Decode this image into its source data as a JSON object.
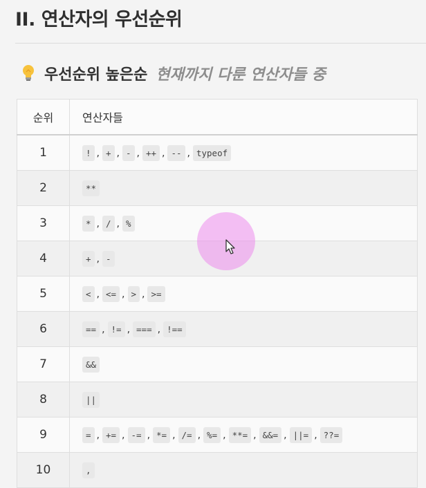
{
  "page": {
    "title": "II. 연산자의 우선순위"
  },
  "section": {
    "icon": "lightbulb-icon",
    "heading": "우선순위 높은순",
    "subheading": "현재까지 다룬 연산자들 중"
  },
  "table": {
    "headers": [
      "순위",
      "연산자들"
    ],
    "rows": [
      {
        "rank": "1",
        "ops": [
          "!",
          "+",
          "-",
          "++",
          "--",
          "typeof"
        ]
      },
      {
        "rank": "2",
        "ops": [
          "**"
        ]
      },
      {
        "rank": "3",
        "ops": [
          "*",
          "/",
          "%"
        ]
      },
      {
        "rank": "4",
        "ops": [
          "+",
          "-"
        ]
      },
      {
        "rank": "5",
        "ops": [
          "<",
          "<=",
          ">",
          ">="
        ]
      },
      {
        "rank": "6",
        "ops": [
          "==",
          "!=",
          "===",
          "!=="
        ]
      },
      {
        "rank": "7",
        "ops": [
          "&&"
        ]
      },
      {
        "rank": "8",
        "ops": [
          "||"
        ]
      },
      {
        "rank": "9",
        "ops": [
          "=",
          "+=",
          "-=",
          "*=",
          "/=",
          "%=",
          "**=",
          "&&=",
          "||=",
          "??="
        ]
      },
      {
        "rank": "10",
        "ops": [
          ","
        ]
      }
    ],
    "separator": ","
  },
  "cursor": {
    "icon": "mouse-pointer-icon",
    "highlight_color": "#ec8cec"
  }
}
